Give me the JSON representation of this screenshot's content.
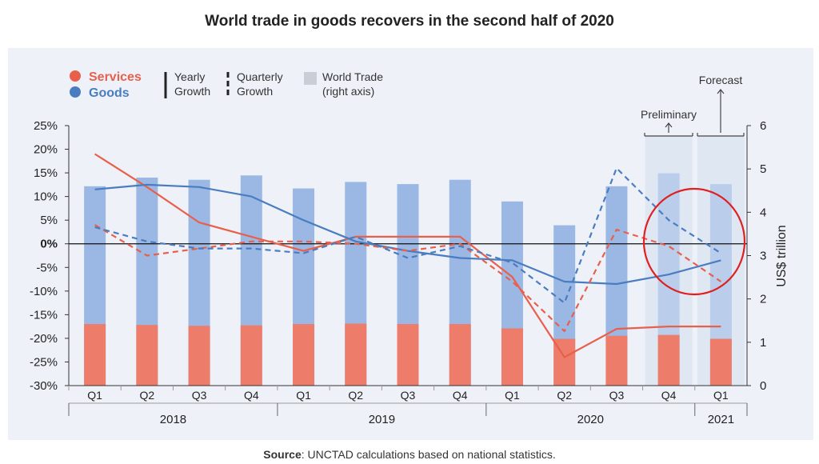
{
  "title": "World trade in goods recovers in the second half of 2020",
  "source_label": "Source",
  "source_text": ": UNCTAD calculations based on national statistics.",
  "legend": {
    "services": "Services",
    "goods": "Goods",
    "yearly_1": "Yearly",
    "yearly_2": "Growth",
    "quarterly_1": "Quarterly",
    "quarterly_2": "Growth",
    "world_1": "World Trade",
    "world_2": "(right axis)"
  },
  "annotations": {
    "preliminary": "Preliminary",
    "forecast": "Forecast"
  },
  "colors": {
    "services": "#e8604c",
    "goods": "#4a7dc0",
    "goods_bar": "#9ab8e3",
    "services_bar": "#ee7c6b",
    "highlight_circle": "#e02020"
  },
  "chart_data": {
    "type": "bar",
    "categories": [
      "Q1",
      "Q2",
      "Q3",
      "Q4",
      "Q1",
      "Q2",
      "Q3",
      "Q4",
      "Q1",
      "Q2",
      "Q3",
      "Q4",
      "Q1"
    ],
    "groups": [
      {
        "label": "2018",
        "start": 0,
        "end": 3
      },
      {
        "label": "2019",
        "start": 4,
        "end": 7
      },
      {
        "label": "2020",
        "start": 8,
        "end": 11
      },
      {
        "label": "2021",
        "start": 12,
        "end": 12
      }
    ],
    "ylabel_right": "US$ trillion",
    "ylim_left": [
      -30,
      25
    ],
    "yticks_left": [
      "25%",
      "20%",
      "15%",
      "10%",
      "5%",
      "0%",
      "-5%",
      "-10%",
      "-15%",
      "-20%",
      "-25%",
      "-30%"
    ],
    "ylim_right": [
      0,
      6
    ],
    "yticks_right": [
      "6",
      "5",
      "4",
      "3",
      "2",
      "1",
      "0"
    ],
    "bar_series": [
      {
        "name": "World Trade",
        "key": "goods",
        "axis": "right",
        "values": [
          4.6,
          4.8,
          4.75,
          4.85,
          4.55,
          4.7,
          4.65,
          4.75,
          4.25,
          3.7,
          4.6,
          4.9,
          4.65
        ]
      },
      {
        "name": "World Trade",
        "key": "services",
        "axis": "right",
        "values": [
          1.42,
          1.4,
          1.38,
          1.39,
          1.42,
          1.43,
          1.42,
          1.42,
          1.32,
          1.08,
          1.15,
          1.17,
          1.08
        ]
      }
    ],
    "line_series": [
      {
        "name": "Services",
        "key": "services",
        "style": "yearly",
        "values": [
          19,
          12,
          4.5,
          1.5,
          -1.5,
          1.5,
          1.5,
          1.5,
          -7,
          -24,
          -18,
          -17.5,
          -17.5
        ]
      },
      {
        "name": "Goods",
        "key": "goods",
        "style": "yearly",
        "values": [
          11.5,
          12.5,
          12,
          10,
          5,
          0.5,
          -1.5,
          -3,
          -3.5,
          -8,
          -8.5,
          -6.5,
          -3.5
        ]
      },
      {
        "name": "Services",
        "key": "services",
        "style": "quarterly",
        "values": [
          4,
          -2.5,
          -1,
          0.5,
          0.5,
          0,
          -1.5,
          0,
          -8,
          -18.5,
          3,
          -0.5,
          -8
        ]
      },
      {
        "name": "Goods",
        "key": "goods",
        "style": "quarterly",
        "values": [
          3.5,
          0.5,
          -1,
          -1,
          -2,
          1.5,
          -3,
          -0.5,
          -4,
          -12.5,
          16,
          5,
          -2
        ]
      }
    ],
    "shaded_categories": [
      11,
      12
    ],
    "grid": false,
    "zero_line": true,
    "legend_position": "top-left"
  }
}
